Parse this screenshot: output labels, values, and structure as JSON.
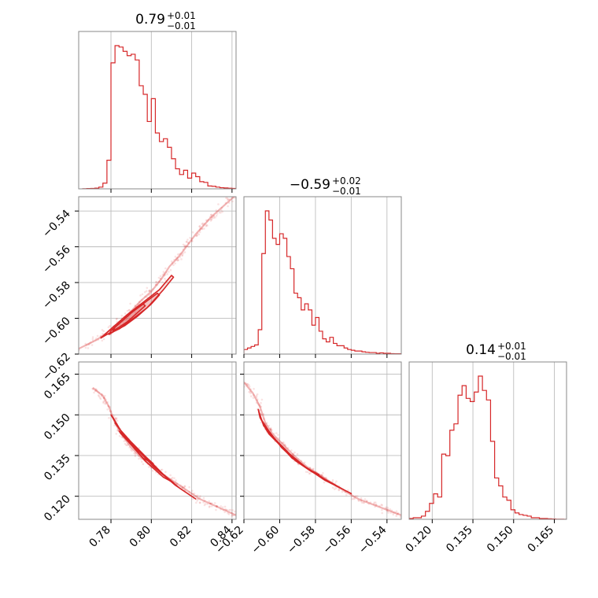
{
  "chart_data": {
    "type": "corner",
    "color": "#d62728",
    "panels": {
      "hist_p1": {
        "type": "histogram",
        "title": {
          "value": "0.79",
          "plus": "+0.01",
          "minus": "−0.01"
        },
        "xlim": [
          0.764,
          0.842
        ],
        "grid": true,
        "bin_start": 0.766,
        "bin_width": 0.002,
        "counts": [
          1,
          2,
          3,
          5,
          12,
          40,
          200,
          880,
          1000,
          990,
          960,
          930,
          940,
          900,
          720,
          660,
          470,
          630,
          390,
          330,
          350,
          290,
          210,
          140,
          100,
          130,
          75,
          110,
          85,
          50,
          45,
          20,
          18,
          12,
          8,
          6,
          4,
          3,
          2,
          2,
          1
        ]
      },
      "hist_p2": {
        "type": "histogram",
        "title": {
          "value": "−0.59",
          "plus": "+0.02",
          "minus": "−0.01"
        },
        "xlim": [
          -0.62,
          -0.532
        ],
        "grid": true,
        "bin_start": -0.62,
        "bin_width": 0.002,
        "counts": [
          30,
          40,
          50,
          60,
          160,
          660,
          940,
          880,
          760,
          720,
          790,
          760,
          640,
          560,
          400,
          370,
          290,
          330,
          290,
          190,
          240,
          150,
          100,
          80,
          110,
          70,
          55,
          55,
          40,
          30,
          25,
          20,
          20,
          15,
          12,
          10,
          10,
          5,
          8,
          5,
          5,
          3,
          2,
          2
        ]
      },
      "hist_p3": {
        "type": "histogram",
        "title": {
          "value": "0.14",
          "plus": "+0.01",
          "minus": "−0.01"
        },
        "xlim": [
          0.1115,
          0.1695
        ],
        "grid": true,
        "bin_start": 0.1115,
        "bin_width": 0.0015,
        "counts": [
          5,
          10,
          10,
          20,
          50,
          100,
          160,
          140,
          410,
          400,
          560,
          600,
          780,
          840,
          760,
          740,
          800,
          900,
          810,
          750,
          490,
          260,
          210,
          140,
          120,
          60,
          40,
          30,
          25,
          20,
          10,
          10,
          5,
          5,
          3,
          2,
          1,
          1,
          0
        ]
      },
      "scatter_p1_p2": {
        "type": "contour-scatter",
        "xlim": [
          0.764,
          0.842
        ],
        "ylim": [
          -0.62,
          -0.532
        ],
        "grid": true,
        "center_line": [
          [
            0.764,
            -0.617
          ],
          [
            0.773,
            -0.612
          ],
          [
            0.778,
            -0.608
          ],
          [
            0.782,
            -0.604
          ],
          [
            0.786,
            -0.601
          ],
          [
            0.79,
            -0.596
          ],
          [
            0.795,
            -0.59
          ],
          [
            0.8,
            -0.585
          ],
          [
            0.805,
            -0.578
          ],
          [
            0.809,
            -0.571
          ],
          [
            0.814,
            -0.565
          ],
          [
            0.818,
            -0.559
          ],
          [
            0.822,
            -0.553
          ],
          [
            0.826,
            -0.548
          ],
          [
            0.83,
            -0.543
          ],
          [
            0.836,
            -0.537
          ],
          [
            0.842,
            -0.531
          ]
        ],
        "contours": [
          {
            "x": [
              0.775,
              0.778,
              0.784,
              0.79,
              0.798,
              0.806,
              0.811,
              0.81,
              0.804,
              0.796,
              0.788,
              0.781,
              0.776,
              0.775
            ],
            "y": [
              -0.611,
              -0.609,
              -0.606,
              -0.601,
              -0.594,
              -0.584,
              -0.577,
              -0.576,
              -0.584,
              -0.591,
              -0.598,
              -0.605,
              -0.61,
              -0.611
            ]
          },
          {
            "x": [
              0.779,
              0.782,
              0.787,
              0.793,
              0.8,
              0.804,
              0.803,
              0.797,
              0.79,
              0.784,
              0.78,
              0.779
            ],
            "y": [
              -0.609,
              -0.607,
              -0.604,
              -0.599,
              -0.592,
              -0.587,
              -0.586,
              -0.591,
              -0.597,
              -0.603,
              -0.607,
              -0.609
            ]
          },
          {
            "x": [
              0.781,
              0.784,
              0.788,
              0.793,
              0.797,
              0.796,
              0.791,
              0.786,
              0.782,
              0.781
            ],
            "y": [
              -0.607,
              -0.605,
              -0.602,
              -0.597,
              -0.593,
              -0.592,
              -0.596,
              -0.601,
              -0.605,
              -0.607
            ]
          }
        ]
      },
      "scatter_p1_p3": {
        "type": "contour-scatter",
        "xlim": [
          0.764,
          0.842
        ],
        "ylim": [
          0.1115,
          0.1695
        ],
        "grid": true,
        "center_line": [
          [
            0.771,
            0.16
          ],
          [
            0.776,
            0.157
          ],
          [
            0.779,
            0.153
          ],
          [
            0.782,
            0.147
          ],
          [
            0.786,
            0.142
          ],
          [
            0.79,
            0.138
          ],
          [
            0.794,
            0.135
          ],
          [
            0.8,
            0.131
          ],
          [
            0.806,
            0.128
          ],
          [
            0.812,
            0.125
          ],
          [
            0.818,
            0.122
          ],
          [
            0.824,
            0.119
          ],
          [
            0.83,
            0.117
          ],
          [
            0.836,
            0.115
          ],
          [
            0.842,
            0.113
          ]
        ],
        "contours": [
          {
            "x": [
              0.78,
              0.784,
              0.79,
              0.798,
              0.806,
              0.814,
              0.82,
              0.822,
              0.812,
              0.801,
              0.792,
              0.785,
              0.781,
              0.78
            ],
            "y": [
              0.15,
              0.145,
              0.14,
              0.134,
              0.128,
              0.123,
              0.12,
              0.119,
              0.124,
              0.131,
              0.138,
              0.144,
              0.149,
              0.15
            ]
          },
          {
            "x": [
              0.782,
              0.786,
              0.792,
              0.799,
              0.806,
              0.811,
              0.806,
              0.797,
              0.79,
              0.784,
              0.782
            ],
            "y": [
              0.147,
              0.143,
              0.138,
              0.133,
              0.128,
              0.125,
              0.127,
              0.133,
              0.139,
              0.145,
              0.147
            ]
          },
          {
            "x": [
              0.784,
              0.788,
              0.793,
              0.798,
              0.801,
              0.796,
              0.79,
              0.785,
              0.784
            ],
            "y": [
              0.144,
              0.141,
              0.137,
              0.134,
              0.132,
              0.134,
              0.139,
              0.143,
              0.144
            ]
          }
        ]
      },
      "scatter_p2_p3": {
        "type": "contour-scatter",
        "xlim": [
          -0.62,
          -0.532
        ],
        "ylim": [
          0.1115,
          0.1695
        ],
        "grid": true,
        "center_line": [
          [
            -0.62,
            0.162
          ],
          [
            -0.615,
            0.158
          ],
          [
            -0.611,
            0.153
          ],
          [
            -0.608,
            0.147
          ],
          [
            -0.604,
            0.143
          ],
          [
            -0.598,
            0.139
          ],
          [
            -0.592,
            0.135
          ],
          [
            -0.585,
            0.131
          ],
          [
            -0.578,
            0.128
          ],
          [
            -0.571,
            0.125
          ],
          [
            -0.564,
            0.122
          ],
          [
            -0.556,
            0.119
          ],
          [
            -0.548,
            0.117
          ],
          [
            -0.54,
            0.115
          ],
          [
            -0.532,
            0.113
          ]
        ],
        "contours": [
          {
            "x": [
              -0.612,
              -0.609,
              -0.603,
              -0.594,
              -0.584,
              -0.575,
              -0.566,
              -0.56,
              -0.563,
              -0.574,
              -0.586,
              -0.597,
              -0.606,
              -0.611,
              -0.612
            ],
            "y": [
              0.152,
              0.146,
              0.141,
              0.135,
              0.13,
              0.126,
              0.123,
              0.121,
              0.122,
              0.126,
              0.131,
              0.137,
              0.143,
              0.149,
              0.152
            ]
          },
          {
            "x": [
              -0.61,
              -0.606,
              -0.6,
              -0.592,
              -0.584,
              -0.578,
              -0.582,
              -0.591,
              -0.599,
              -0.606,
              -0.61
            ],
            "y": [
              0.148,
              0.143,
              0.139,
              0.134,
              0.13,
              0.128,
              0.129,
              0.133,
              0.138,
              0.144,
              0.148
            ]
          },
          {
            "x": [
              -0.608,
              -0.604,
              -0.598,
              -0.592,
              -0.588,
              -0.593,
              -0.6,
              -0.606,
              -0.608
            ],
            "y": [
              0.145,
              0.142,
              0.138,
              0.134,
              0.132,
              0.134,
              0.139,
              0.143,
              0.145
            ]
          }
        ]
      }
    },
    "axes": {
      "p1": {
        "ticks": [
          0.78,
          0.8,
          0.82,
          0.84
        ],
        "tick_labels": [
          "0.78",
          "0.80",
          "0.82",
          "0.84"
        ]
      },
      "p2": {
        "ticks": [
          -0.62,
          -0.6,
          -0.58,
          -0.56,
          -0.54
        ],
        "tick_labels": [
          "−0.62",
          "−0.60",
          "−0.58",
          "−0.56",
          "−0.54"
        ]
      },
      "p3": {
        "ticks": [
          0.12,
          0.135,
          0.15,
          0.165
        ],
        "tick_labels": [
          "0.120",
          "0.135",
          "0.150",
          "0.165"
        ]
      }
    }
  }
}
